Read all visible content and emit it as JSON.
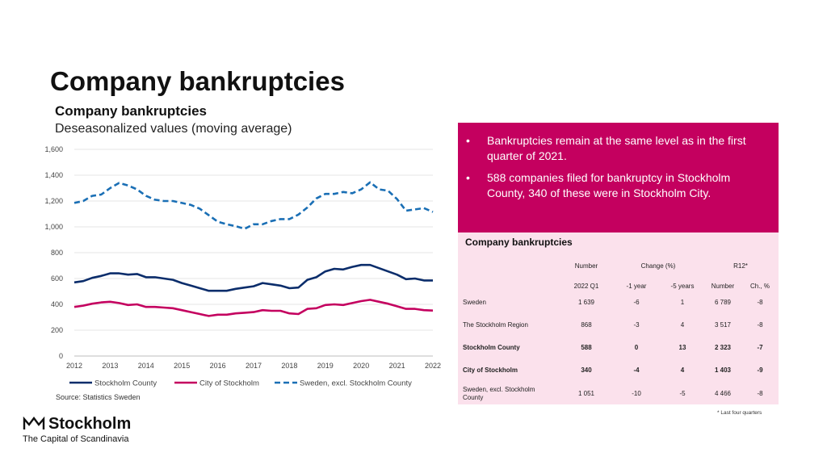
{
  "page_title": "Company bankruptcies",
  "chart_data": {
    "type": "line",
    "title": "Company bankruptcies",
    "subtitle": "Deseasonalized values (moving average)",
    "x": [
      2012.0,
      2012.25,
      2012.5,
      2012.75,
      2013.0,
      2013.25,
      2013.5,
      2013.75,
      2014.0,
      2014.25,
      2014.5,
      2014.75,
      2015.0,
      2015.25,
      2015.5,
      2015.75,
      2016.0,
      2016.25,
      2016.5,
      2016.75,
      2017.0,
      2017.25,
      2017.5,
      2017.75,
      2018.0,
      2018.25,
      2018.5,
      2018.75,
      2019.0,
      2019.25,
      2019.5,
      2019.75,
      2020.0,
      2020.25,
      2020.5,
      2020.75,
      2021.0,
      2021.25,
      2021.5,
      2021.75,
      2022.0
    ],
    "xticks": [
      "2012",
      "2013",
      "2014",
      "2015",
      "2016",
      "2017",
      "2018",
      "2019",
      "2020",
      "2021",
      "2022"
    ],
    "yticks": [
      "0",
      "200",
      "400",
      "600",
      "800",
      "1,000",
      "1,200",
      "1,400",
      "1,600"
    ],
    "ylim": [
      0,
      1600
    ],
    "series": [
      {
        "name": "Stockholm County",
        "color": "#0b2d6b",
        "dash": "solid",
        "values": [
          570,
          580,
          605,
          620,
          640,
          640,
          630,
          635,
          610,
          610,
          600,
          590,
          565,
          545,
          525,
          505,
          505,
          505,
          520,
          530,
          540,
          565,
          555,
          545,
          525,
          530,
          590,
          610,
          655,
          675,
          670,
          690,
          705,
          705,
          680,
          655,
          630,
          595,
          600,
          585,
          585
        ]
      },
      {
        "name": "City of Stockholm",
        "color": "#c4005f",
        "dash": "solid",
        "values": [
          380,
          390,
          405,
          415,
          420,
          410,
          395,
          400,
          380,
          380,
          375,
          370,
          355,
          340,
          325,
          310,
          320,
          320,
          330,
          335,
          340,
          355,
          350,
          350,
          330,
          325,
          365,
          370,
          395,
          400,
          395,
          410,
          425,
          435,
          420,
          405,
          385,
          365,
          365,
          355,
          352
        ]
      },
      {
        "name": "Sweden, excl. Stockholm County",
        "color": "#1a6fb5",
        "dash": "dashed",
        "values": [
          1185,
          1200,
          1240,
          1250,
          1300,
          1340,
          1320,
          1290,
          1240,
          1210,
          1200,
          1200,
          1185,
          1170,
          1140,
          1090,
          1040,
          1020,
          1005,
          985,
          1020,
          1020,
          1045,
          1060,
          1060,
          1095,
          1150,
          1220,
          1255,
          1255,
          1270,
          1260,
          1290,
          1345,
          1290,
          1280,
          1215,
          1125,
          1135,
          1145,
          1115
        ]
      }
    ],
    "legend_position": "bottom",
    "source": "Source: Statistics Sweden"
  },
  "bullets": [
    "Bankruptcies remain at the same level as in the first quarter of 2021.",
    "588 companies filed for bankruptcy in Stockholm County, 340 of these were in Stockholm City."
  ],
  "bullet_marker": "•",
  "table": {
    "title": "Company bankruptcies",
    "group_headers": [
      "Number",
      "Change (%)",
      "R12*"
    ],
    "sub_headers": [
      "2022 Q1",
      "-1 year",
      "-5 years",
      "Number",
      "Ch., %"
    ],
    "rows": [
      {
        "label": "Sweden",
        "bold": false,
        "values": [
          "1 639",
          "-6",
          "1",
          "6 789",
          "-8"
        ]
      },
      {
        "label": "The Stockholm Region",
        "bold": false,
        "values": [
          "868",
          "-3",
          "4",
          "3 517",
          "-8"
        ]
      },
      {
        "label": "Stockholm County",
        "bold": true,
        "values": [
          "588",
          "0",
          "13",
          "2 323",
          "-7"
        ]
      },
      {
        "label": "City of Stockholm",
        "bold": true,
        "values": [
          "340",
          "-4",
          "4",
          "1 403",
          "-9"
        ]
      },
      {
        "label": "Sweden, excl. Stockholm County",
        "bold": false,
        "values": [
          "1 051",
          "-10",
          "-5",
          "4 466",
          "-8"
        ]
      }
    ],
    "footnote": "* Last four quarters"
  },
  "logo": {
    "name": "Stockholm",
    "tagline": "The Capital of Scandinavia",
    "icon": "crown-icon"
  },
  "colors": {
    "magenta": "#c4005f",
    "pink_bg": "#fbe1ec",
    "navy": "#0b2d6b",
    "blue": "#1a6fb5"
  }
}
